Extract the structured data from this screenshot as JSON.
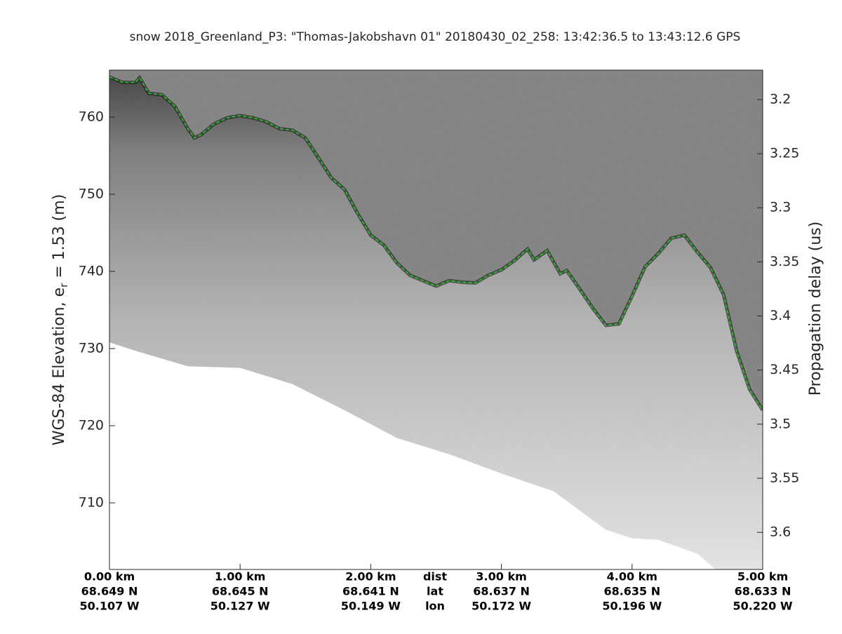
{
  "chart_data": {
    "type": "echogram",
    "title": "snow 2018_Greenland_P3: \"Thomas-Jakobshavn 01\"  20180430_02_258: 13:42:36.5 to 13:43:12.6 GPS",
    "ylabel": {
      "text": "WGS-84 Elevation, e",
      "sub": "r",
      "rest": " = 1.53 (m)"
    },
    "y2label": "Propagation delay (us)",
    "xlabel_lines": [
      "dist",
      "lat",
      "lon"
    ],
    "xlim": [
      0,
      5
    ],
    "xticks": [
      {
        "value": 0,
        "label": "0.00 km"
      },
      {
        "value": 1,
        "label": "1.00 km"
      },
      {
        "value": 2,
        "label": "2.00 km"
      },
      {
        "value": 3,
        "label": "3.00 km"
      },
      {
        "value": 4,
        "label": "4.00 km"
      },
      {
        "value": 5,
        "label": "5.00 km"
      }
    ],
    "lat_labels": [
      "68.649 N",
      "68.645 N",
      "68.641 N",
      "68.637 N",
      "68.635 N",
      "68.633 N"
    ],
    "lon_labels": [
      "50.107 W",
      "50.127 W",
      "50.149 W",
      "50.172 W",
      "50.196 W",
      "50.220 W"
    ],
    "ylim": [
      701.36,
      766.09
    ],
    "yticks": [
      710,
      720,
      730,
      740,
      750,
      760
    ],
    "y2lim": [
      3.6343,
      3.1728
    ],
    "y2ticks": [
      3.2,
      3.25,
      3.3,
      3.35,
      3.4,
      3.45,
      3.5,
      3.55,
      3.6
    ],
    "series": [
      {
        "color": "#22cc22",
        "style": "dashed-line",
        "x": [
          0,
          0.1,
          0.2,
          0.23,
          0.3,
          0.4,
          0.5,
          0.6,
          0.65,
          0.7,
          0.8,
          0.9,
          1.0,
          1.1,
          1.2,
          1.3,
          1.4,
          1.5,
          1.6,
          1.7,
          1.8,
          1.9,
          2.0,
          2.1,
          2.2,
          2.3,
          2.4,
          2.5,
          2.6,
          2.7,
          2.8,
          2.9,
          3.0,
          3.1,
          3.2,
          3.25,
          3.35,
          3.45,
          3.5,
          3.6,
          3.7,
          3.8,
          3.9,
          4.0,
          4.1,
          4.2,
          4.3,
          4.4,
          4.5,
          4.6,
          4.7,
          4.8,
          4.9,
          5.0
        ],
        "values": [
          765.2,
          764.5,
          764.5,
          765.1,
          763.1,
          762.9,
          761.4,
          758.5,
          757.3,
          757.7,
          759.1,
          759.9,
          760.2,
          759.9,
          759.4,
          758.5,
          758.3,
          757.3,
          754.7,
          752.1,
          750.6,
          747.5,
          744.7,
          743.4,
          741.1,
          739.5,
          738.8,
          738.1,
          738.8,
          738.6,
          738.5,
          739.5,
          740.2,
          741.4,
          742.9,
          741.5,
          742.7,
          739.7,
          740.1,
          737.7,
          735.2,
          733.0,
          733.2,
          736.8,
          740.6,
          742.3,
          744.3,
          744.7,
          742.5,
          740.5,
          737.0,
          729.7,
          724.7,
          722.0
        ]
      },
      {
        "color": "#ffffff",
        "style": "area-below",
        "x": [
          0,
          0.2,
          0.6,
          1.0,
          1.4,
          1.8,
          2.2,
          2.6,
          3.0,
          3.4,
          3.8,
          4.0,
          4.2,
          4.5,
          4.64
        ],
        "values": [
          730.8,
          729.7,
          727.7,
          727.5,
          725.4,
          722.0,
          718.4,
          716.3,
          713.8,
          711.5,
          706.5,
          705.4,
          705.2,
          703.4,
          701.36
        ]
      }
    ]
  }
}
